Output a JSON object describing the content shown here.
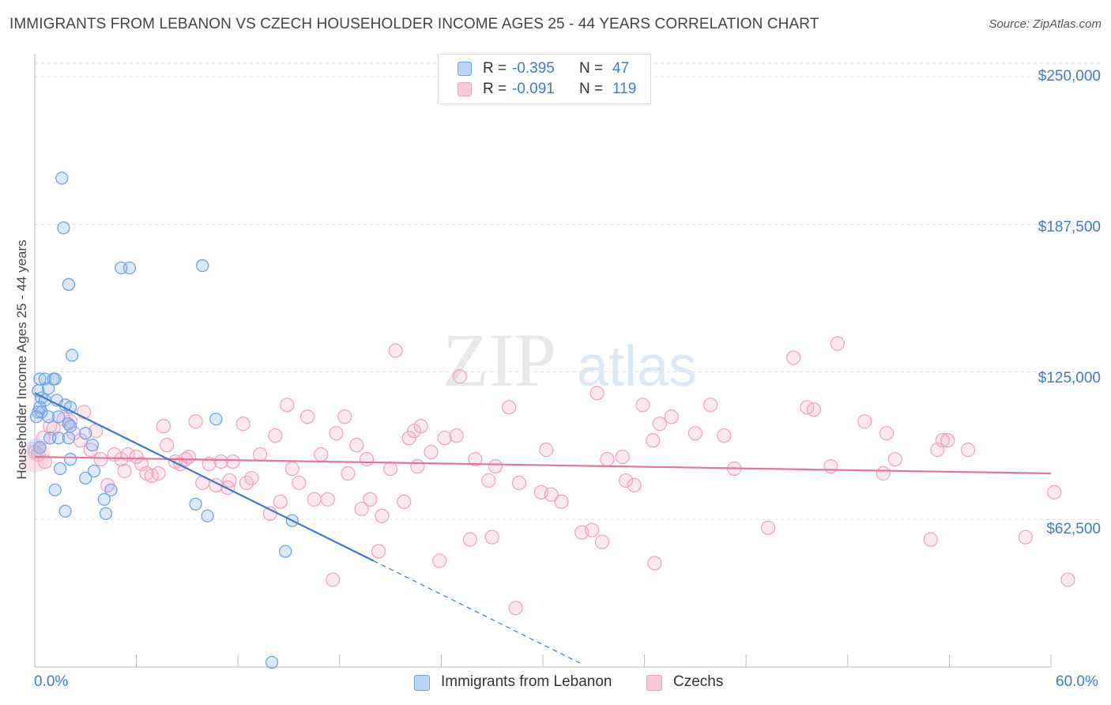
{
  "title": "IMMIGRANTS FROM LEBANON VS CZECH HOUSEHOLDER INCOME AGES 25 - 44 YEARS CORRELATION CHART",
  "source": "Source: ZipAtlas.com",
  "watermark": {
    "zip": "ZIP",
    "atlas": "atlas"
  },
  "legend": {
    "rows": [
      {
        "r_label": "R = ",
        "r_value": "-0.395",
        "n_label": "N = ",
        "n_value": "47"
      },
      {
        "r_label": "R = ",
        "r_value": "-0.091",
        "n_label": "N = ",
        "n_value": "119"
      }
    ]
  },
  "bottom_legend": [
    "Immigrants from Lebanon",
    "Czechs"
  ],
  "colors": {
    "blue": "#6fa3e6",
    "blue_line": "#3a78d4",
    "pink": "#f0a0bb",
    "pink_line": "#e8729a",
    "tick_text": "#3d7bd0"
  },
  "chart_data": {
    "type": "scatter",
    "title": "IMMIGRANTS FROM LEBANON VS CZECH HOUSEHOLDER INCOME AGES 25 - 44 YEARS CORRELATION CHART",
    "xlabel": "",
    "ylabel": "Householder Income Ages 25 - 44 years",
    "xlim": [
      0,
      60
    ],
    "ylim": [
      0,
      250000
    ],
    "x_tick_labels": [
      "0.0%",
      "60.0%"
    ],
    "y_ticks": [
      62500,
      125000,
      187500,
      250000
    ],
    "y_tick_labels": [
      "$62,500",
      "$125,000",
      "$187,500",
      "$250,000"
    ],
    "grid": true,
    "legend_position": "top-center",
    "series": [
      {
        "name": "Immigrants from Lebanon",
        "r": -0.395,
        "n": 47,
        "trend": {
          "x0": 0,
          "y0": 116000,
          "x1": 20,
          "y1": 45000,
          "dash_to_x": 32.2
        },
        "points": [
          [
            1.6,
            207000
          ],
          [
            1.7,
            186000
          ],
          [
            2.0,
            162000
          ],
          [
            5.1,
            169000
          ],
          [
            5.6,
            169000
          ],
          [
            9.9,
            170000
          ],
          [
            2.2,
            132000
          ],
          [
            0.3,
            122000
          ],
          [
            0.6,
            122000
          ],
          [
            1.1,
            122000
          ],
          [
            1.2,
            122000
          ],
          [
            0.2,
            117000
          ],
          [
            0.8,
            118000
          ],
          [
            0.4,
            114000
          ],
          [
            0.6,
            113000
          ],
          [
            1.3,
            113000
          ],
          [
            1.8,
            111000
          ],
          [
            0.3,
            110000
          ],
          [
            0.2,
            108000
          ],
          [
            0.4,
            108000
          ],
          [
            2.1,
            110000
          ],
          [
            0.8,
            106000
          ],
          [
            1.4,
            106000
          ],
          [
            2.0,
            103000
          ],
          [
            2.1,
            102000
          ],
          [
            3.0,
            99000
          ],
          [
            0.9,
            97000
          ],
          [
            1.4,
            97000
          ],
          [
            2.0,
            97000
          ],
          [
            3.4,
            94000
          ],
          [
            0.3,
            93000
          ],
          [
            2.1,
            88000
          ],
          [
            1.5,
            84000
          ],
          [
            3.5,
            83000
          ],
          [
            3.0,
            80000
          ],
          [
            4.5,
            75000
          ],
          [
            1.2,
            75000
          ],
          [
            4.1,
            71000
          ],
          [
            9.5,
            69000
          ],
          [
            1.8,
            66000
          ],
          [
            4.2,
            65000
          ],
          [
            10.2,
            64000
          ],
          [
            10.7,
            105000
          ],
          [
            15.2,
            62000
          ],
          [
            14.8,
            49000
          ],
          [
            14.0,
            2000
          ],
          [
            0.1,
            106000
          ]
        ]
      },
      {
        "name": "Czechs",
        "r": -0.091,
        "n": 119,
        "trend": {
          "x0": 0,
          "y0": 89000,
          "x1": 60,
          "y1": 82000
        },
        "points": [
          [
            0.0,
            91000
          ],
          [
            0.5,
            97000
          ],
          [
            0.9,
            102000
          ],
          [
            1.7,
            105000
          ],
          [
            2.1,
            104000
          ],
          [
            2.3,
            99000
          ],
          [
            2.7,
            96000
          ],
          [
            2.9,
            108000
          ],
          [
            3.3,
            92000
          ],
          [
            3.9,
            88000
          ],
          [
            4.3,
            77000
          ],
          [
            4.7,
            90000
          ],
          [
            5.1,
            88000
          ],
          [
            5.3,
            83000
          ],
          [
            5.5,
            90000
          ],
          [
            6.0,
            89000
          ],
          [
            6.3,
            86000
          ],
          [
            6.6,
            82000
          ],
          [
            7.3,
            82000
          ],
          [
            7.6,
            102000
          ],
          [
            7.8,
            94000
          ],
          [
            8.3,
            87000
          ],
          [
            8.6,
            86000
          ],
          [
            8.9,
            88000
          ],
          [
            9.1,
            89000
          ],
          [
            9.5,
            104000
          ],
          [
            9.9,
            78000
          ],
          [
            10.3,
            86000
          ],
          [
            10.7,
            77000
          ],
          [
            11.0,
            87000
          ],
          [
            11.5,
            79000
          ],
          [
            11.7,
            87000
          ],
          [
            12.3,
            103000
          ],
          [
            12.5,
            78000
          ],
          [
            12.8,
            80000
          ],
          [
            13.3,
            90000
          ],
          [
            13.9,
            65000
          ],
          [
            14.2,
            98000
          ],
          [
            14.5,
            70000
          ],
          [
            14.9,
            111000
          ],
          [
            15.2,
            84000
          ],
          [
            15.6,
            78000
          ],
          [
            16.1,
            106000
          ],
          [
            16.5,
            71000
          ],
          [
            16.9,
            90000
          ],
          [
            17.3,
            71000
          ],
          [
            17.6,
            37000
          ],
          [
            17.8,
            99000
          ],
          [
            18.3,
            106000
          ],
          [
            18.5,
            82000
          ],
          [
            19.0,
            94000
          ],
          [
            19.3,
            67000
          ],
          [
            19.6,
            88000
          ],
          [
            19.8,
            71000
          ],
          [
            20.3,
            49000
          ],
          [
            20.5,
            64000
          ],
          [
            21.0,
            84000
          ],
          [
            21.3,
            134000
          ],
          [
            21.8,
            70000
          ],
          [
            22.1,
            97000
          ],
          [
            22.6,
            85000
          ],
          [
            22.8,
            102000
          ],
          [
            23.4,
            91000
          ],
          [
            23.9,
            45000
          ],
          [
            24.2,
            97000
          ],
          [
            25.1,
            123000
          ],
          [
            25.7,
            54000
          ],
          [
            26.0,
            88000
          ],
          [
            26.8,
            79000
          ],
          [
            27.0,
            55000
          ],
          [
            27.2,
            85000
          ],
          [
            28.0,
            110000
          ],
          [
            28.4,
            25000
          ],
          [
            28.6,
            78000
          ],
          [
            29.9,
            74000
          ],
          [
            30.2,
            92000
          ],
          [
            31.1,
            70000
          ],
          [
            32.3,
            57000
          ],
          [
            32.9,
            58000
          ],
          [
            33.2,
            116000
          ],
          [
            33.5,
            53000
          ],
          [
            33.8,
            88000
          ],
          [
            34.9,
            79000
          ],
          [
            35.4,
            77000
          ],
          [
            34.7,
            89000
          ],
          [
            35.9,
            111000
          ],
          [
            36.5,
            96000
          ],
          [
            36.6,
            44000
          ],
          [
            36.9,
            103000
          ],
          [
            37.6,
            106000
          ],
          [
            39.0,
            99000
          ],
          [
            39.9,
            111000
          ],
          [
            40.7,
            98000
          ],
          [
            41.3,
            84000
          ],
          [
            43.3,
            59000
          ],
          [
            44.8,
            131000
          ],
          [
            45.6,
            110000
          ],
          [
            46.0,
            109000
          ],
          [
            47.0,
            85000
          ],
          [
            47.4,
            137000
          ],
          [
            49.0,
            104000
          ],
          [
            50.1,
            82000
          ],
          [
            50.3,
            99000
          ],
          [
            50.8,
            88000
          ],
          [
            52.9,
            54000
          ],
          [
            53.3,
            92000
          ],
          [
            53.6,
            96000
          ],
          [
            53.9,
            96000
          ],
          [
            55.1,
            92000
          ],
          [
            58.5,
            55000
          ],
          [
            60.2,
            74000
          ],
          [
            61.0,
            37000
          ],
          [
            0.2,
            90000
          ],
          [
            1.1,
            101000
          ],
          [
            3.6,
            100000
          ],
          [
            6.9,
            81000
          ],
          [
            11.4,
            76000
          ],
          [
            24.9,
            98000
          ],
          [
            30.5,
            73000
          ],
          [
            22.4,
            100000
          ],
          [
            0.6,
            87000
          ]
        ]
      }
    ]
  }
}
